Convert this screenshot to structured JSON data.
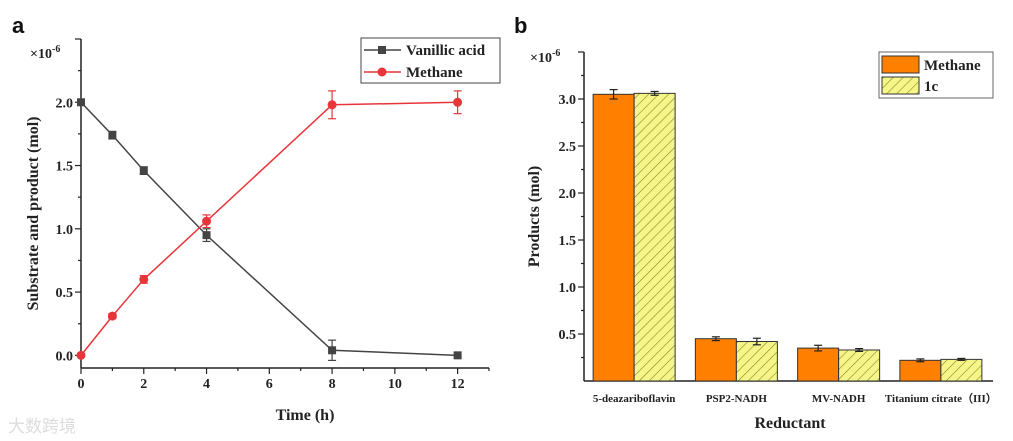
{
  "chart_data": [
    {
      "type": "line",
      "panel_label": "a",
      "xlabel": "Time (h)",
      "ylabel": "Substrate and product (mol)",
      "y_multiplier": "×10",
      "y_multiplier_exp": "-6",
      "xlim": [
        0,
        13
      ],
      "ylim": [
        -0.1,
        2.5
      ],
      "xticks": [
        0,
        2,
        4,
        6,
        8,
        10,
        12
      ],
      "yticks": [
        0.0,
        0.5,
        1.0,
        1.5,
        2.0
      ],
      "ytick_labels": [
        "0.0",
        "0.5",
        "1.0",
        "1.5",
        "2.0"
      ],
      "legend_position": "top-right",
      "series": [
        {
          "name": "Vanillic acid",
          "color": "#444444",
          "marker": "square",
          "x": [
            0,
            1,
            2,
            4,
            8,
            12
          ],
          "y": [
            2.0,
            1.74,
            1.46,
            0.95,
            0.04,
            0.0
          ],
          "err": [
            0,
            0.03,
            0.03,
            0.05,
            0.08,
            0
          ]
        },
        {
          "name": "Methane",
          "color": "#e8353a",
          "marker": "circle",
          "x": [
            0,
            1,
            2,
            4,
            8,
            12
          ],
          "y": [
            0.0,
            0.31,
            0.6,
            1.06,
            1.98,
            2.0
          ],
          "err": [
            0,
            0.02,
            0.03,
            0.05,
            0.11,
            0.09
          ]
        }
      ]
    },
    {
      "type": "bar",
      "panel_label": "b",
      "xlabel": "Reductant",
      "ylabel": "Products (mol)",
      "y_multiplier": "×10",
      "y_multiplier_exp": "-6",
      "ylim": [
        0,
        3.5
      ],
      "yticks": [
        0.5,
        1.0,
        1.5,
        2.0,
        2.5,
        3.0
      ],
      "ytick_labels": [
        "0.5",
        "1.0",
        "1.5",
        "2.0",
        "2.5",
        "3.0"
      ],
      "categories": [
        "5-deazariboflavin",
        "PSP2-NADH",
        "MV-NADH",
        "Titanium citrate（III）"
      ],
      "legend_position": "top-right",
      "series": [
        {
          "name": "Methane",
          "color": "#ff8000",
          "pattern": "solid",
          "values": [
            3.05,
            0.45,
            0.35,
            0.22
          ],
          "err": [
            0.05,
            0.02,
            0.03,
            0.015
          ]
        },
        {
          "name": "1c",
          "color": "#f5f58a",
          "pattern": "hatch",
          "values": [
            3.06,
            0.42,
            0.33,
            0.23
          ],
          "err": [
            0.02,
            0.035,
            0.015,
            0.01
          ]
        }
      ]
    }
  ],
  "watermark": "大数跨境"
}
